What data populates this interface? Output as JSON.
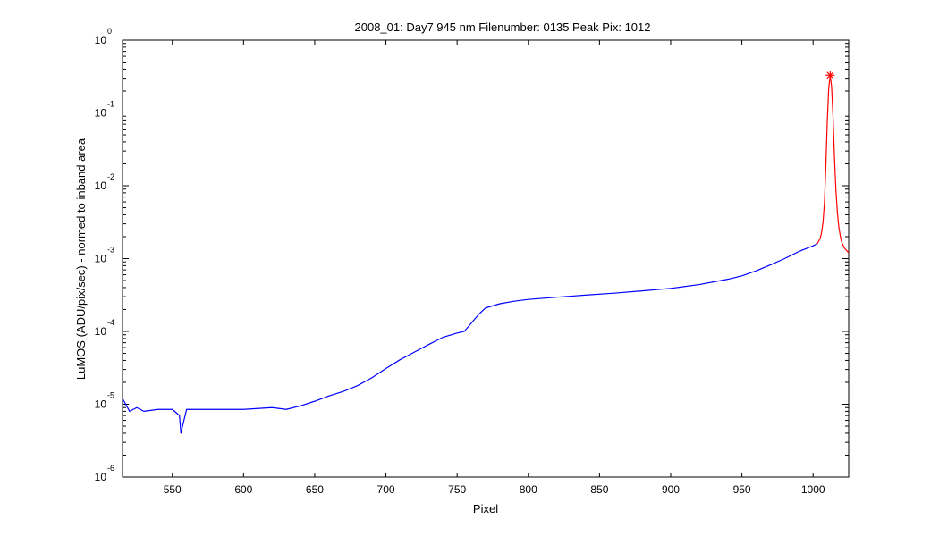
{
  "chart_data": {
    "type": "line",
    "title": "2008_01: Day7  945 nm  Filenumber: 0135 Peak Pix: 1012",
    "xlabel": "Pixel",
    "ylabel": "LuMOS (ADU/pix/sec) - normed to inband area",
    "xlim": [
      515,
      1025
    ],
    "ylim": [
      1e-06,
      1
    ],
    "yscale": "log",
    "grid": false,
    "x_ticks": [
      550,
      600,
      650,
      700,
      750,
      800,
      850,
      900,
      950,
      1000
    ],
    "y_ticks": [
      {
        "base": "10",
        "exp": "-6"
      },
      {
        "base": "10",
        "exp": "-5"
      },
      {
        "base": "10",
        "exp": "-4"
      },
      {
        "base": "10",
        "exp": "-3"
      },
      {
        "base": "10",
        "exp": "-2"
      },
      {
        "base": "10",
        "exp": "-1"
      },
      {
        "base": "10",
        "exp": "0"
      }
    ],
    "peak": {
      "x": 1012,
      "y": 0.33,
      "marker": "*",
      "color": "#ff0000"
    },
    "series": [
      {
        "color": "#0000ff",
        "x": [
          515,
          520,
          525,
          530,
          540,
          550,
          555,
          556,
          560,
          570,
          580,
          600,
          620,
          630,
          640,
          650,
          660,
          670,
          680,
          690,
          700,
          710,
          720,
          730,
          740,
          750,
          755,
          760,
          765,
          770,
          780,
          790,
          800,
          820,
          840,
          860,
          880,
          900,
          920,
          940,
          950,
          960,
          970,
          980,
          990,
          1000,
          1003
        ],
        "y": [
          1.2e-05,
          8e-06,
          9e-06,
          8e-06,
          8.5e-06,
          8.5e-06,
          7e-06,
          4e-06,
          8.5e-06,
          8.5e-06,
          8.5e-06,
          8.5e-06,
          9e-06,
          8.5e-06,
          9.5e-06,
          1.1e-05,
          1.3e-05,
          1.5e-05,
          1.8e-05,
          2.3e-05,
          3.1e-05,
          4.1e-05,
          5.2e-05,
          6.6e-05,
          8.3e-05,
          9.5e-05,
          0.0001,
          0.00013,
          0.00017,
          0.00021,
          0.00024,
          0.00026,
          0.000275,
          0.000295,
          0.000315,
          0.000335,
          0.00036,
          0.00039,
          0.00044,
          0.00052,
          0.00058,
          0.00068,
          0.00082,
          0.001,
          0.00125,
          0.0015,
          0.0016
        ]
      },
      {
        "color": "#ff0000",
        "x": [
          1003,
          1005,
          1006,
          1007,
          1008,
          1009,
          1010,
          1011,
          1012,
          1013,
          1014,
          1015,
          1016,
          1017,
          1018,
          1019,
          1020,
          1022,
          1025
        ],
        "y": [
          0.0016,
          0.0019,
          0.0023,
          0.0032,
          0.006,
          0.02,
          0.08,
          0.22,
          0.33,
          0.23,
          0.09,
          0.025,
          0.009,
          0.0045,
          0.0028,
          0.0021,
          0.0017,
          0.0014,
          0.0012
        ]
      }
    ]
  }
}
